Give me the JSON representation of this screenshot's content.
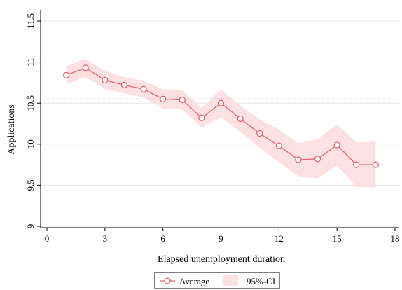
{
  "chart_data": {
    "type": "line",
    "xlabel": "Elapsed unemployment duration",
    "ylabel": "Applications",
    "xlim": [
      0,
      18
    ],
    "ylim": [
      9,
      11.5
    ],
    "x_ticks": [
      "0",
      "3",
      "6",
      "9",
      "12",
      "15",
      "18"
    ],
    "y_ticks": [
      "9",
      "9.5",
      "10",
      "10.5",
      "11",
      "11.5"
    ],
    "grid": "horizontal",
    "reference_line": 10.55,
    "legend_position": "bottom-center",
    "colors": {
      "line": "#e8636b",
      "band": "#fde1e2",
      "reference": "#7f7f7f"
    },
    "x": [
      1,
      2,
      3,
      4,
      5,
      6,
      7,
      8,
      9,
      10,
      11,
      12,
      13,
      14,
      15,
      16,
      17
    ],
    "series": [
      {
        "name": "Average",
        "values": [
          10.84,
          10.93,
          10.78,
          10.72,
          10.67,
          10.55,
          10.54,
          10.32,
          10.5,
          10.31,
          10.13,
          9.98,
          9.81,
          9.82,
          9.99,
          9.75,
          9.75
        ]
      },
      {
        "name": "95%-CI",
        "lower": [
          10.73,
          10.82,
          10.67,
          10.62,
          10.57,
          10.43,
          10.42,
          10.2,
          10.33,
          10.15,
          9.96,
          9.78,
          9.61,
          9.58,
          9.74,
          9.48,
          9.47
        ],
        "upper": [
          10.95,
          11.04,
          10.89,
          10.82,
          10.77,
          10.67,
          10.66,
          10.44,
          10.67,
          10.47,
          10.3,
          10.18,
          10.01,
          10.06,
          10.24,
          10.02,
          10.03
        ]
      }
    ]
  }
}
